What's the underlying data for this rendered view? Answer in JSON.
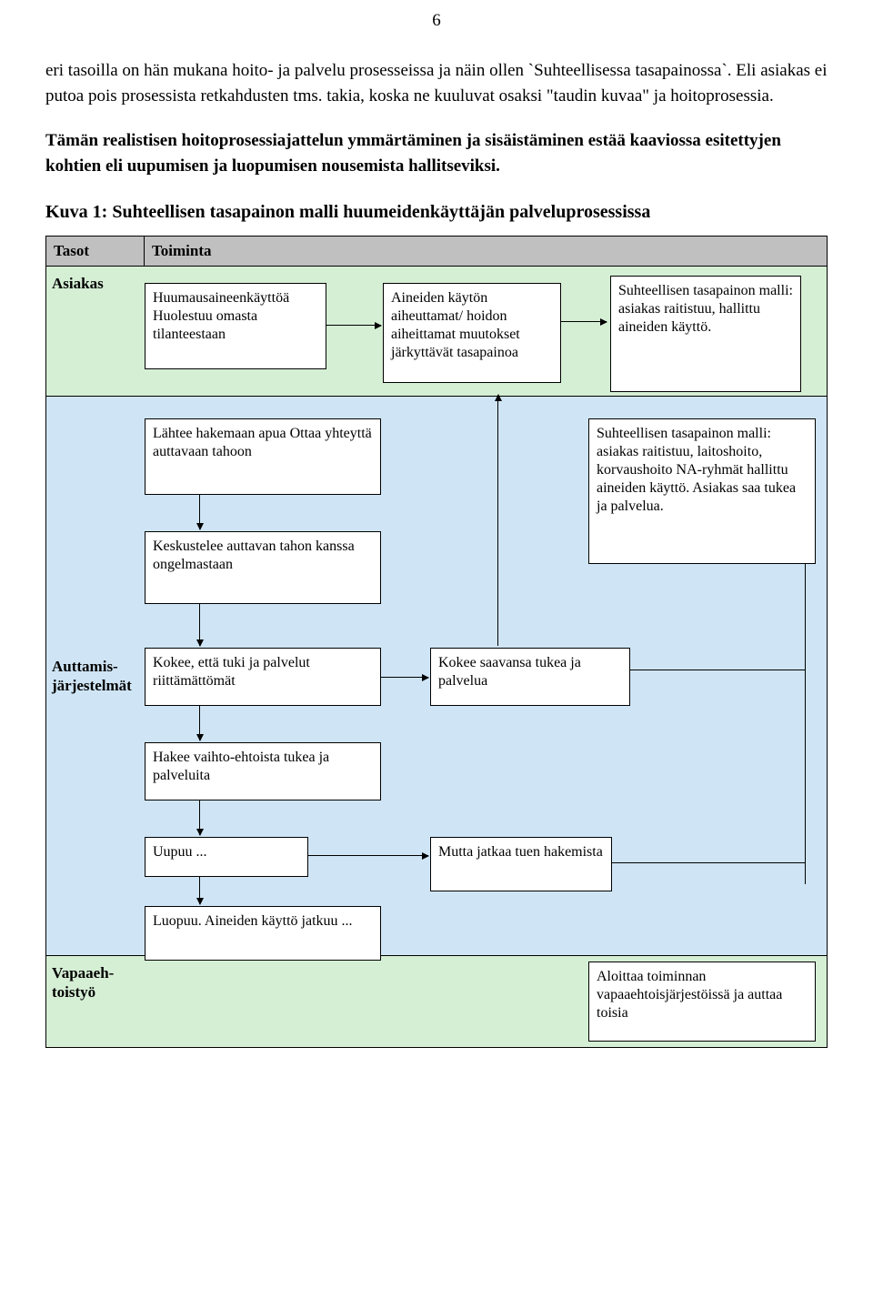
{
  "page_number": "6",
  "paragraphs": {
    "p1": "eri tasoilla on hän mukana hoito- ja palvelu prosesseissa ja näin ollen `Suhteellisessa tasapainossa`. Eli asiakas ei putoa pois prosessista retkahdusten tms. takia, koska ne kuuluvat osaksi \"taudin kuvaa\" ja hoitoprosessia.",
    "p2": "Tämän realistisen hoitoprosessiajattelun ymmärtäminen ja sisäistäminen estää kaaviossa esitettyjen kohtien eli uupumisen ja luopumisen nousemista hallitseviksi."
  },
  "figure": {
    "title": "Kuva 1: Suhteellisen tasapainon malli huumeidenkäyttäjän palveluprosessissa",
    "header": {
      "left": "Tasot",
      "right": "Toiminta"
    },
    "colors": {
      "header_bg": "#c0c0c0",
      "row_light": "#d5efd5",
      "row_blue": "#cfe5f5",
      "box_bg": "#ffffff",
      "border": "#000000"
    },
    "rows": {
      "asiakas": {
        "label": "Asiakas",
        "b1": "Huumausaineenkäyttöä Huolestuu omasta tilanteestaan",
        "b2": "Aineiden käytön aiheuttamat/ hoidon aiheittamat muutokset  järkyttävät tasapainoa",
        "b3": "Suhteellisen tasapainon malli: asiakas raitistuu, hallittu aineiden käyttö."
      },
      "auttamis": {
        "label": "Auttamis-järjestelmät",
        "b1": "Lähtee hakemaan apua Ottaa yhteyttä auttavaan tahoon",
        "b2": "Keskustelee auttavan tahon kanssa ongelmastaan",
        "b3": "Kokee, että  tuki ja palvelut riittämättömät",
        "b4": "Hakee vaihto-ehtoista tukea ja palveluita",
        "b5": "Uupuu ...",
        "b6": "Luopuu.\nAineiden käyttö jatkuu ...",
        "b7": "Kokee saavansa tukea ja palvelua",
        "b8": "Mutta jatkaa tuen hakemista",
        "b9": "Suhteellisen tasapainon malli: asiakas raitistuu, laitoshoito, korvaushoito NA-ryhmät hallittu aineiden käyttö. Asiakas saa  tukea ja palvelua."
      },
      "vapaa": {
        "label": "Vapaaeh-toistyö",
        "b1": "Aloittaa toiminnan vapaaehtoisjärjestöissä ja auttaa toisia"
      }
    }
  }
}
